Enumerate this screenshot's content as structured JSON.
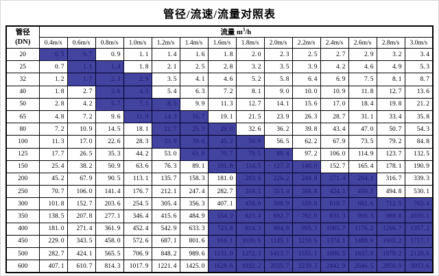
{
  "page": {
    "title": "管径/流速/流量对照表"
  },
  "table": {
    "corner": {
      "line1": "管径",
      "line2": "(DN)"
    },
    "flow_header": {
      "label": "流量",
      "unit_base": "m",
      "unit_sup": "3",
      "unit_rest": "/h"
    },
    "velocity_headers": [
      "0.4m/s",
      "0.6m/s",
      "0.8m/s",
      "1.0m/s",
      "1.2m/s",
      "1.4m/s",
      "1.6m/s",
      "1.8m/s",
      "2.0m/s",
      "2.2m/s",
      "2.4m/s",
      "2.6m/s",
      "2.8m/s",
      "3.0m/s"
    ],
    "rows": [
      {
        "dn": "20",
        "hl": [
          0,
          1
        ],
        "values": [
          "0.5",
          "0.7",
          "0.9",
          "1.1",
          "1.4",
          "1.6",
          "1.8",
          "2.0",
          "2.3",
          "2.5",
          "2.7",
          "2.9",
          "3.2",
          "3.4"
        ]
      },
      {
        "dn": "25",
        "hl": [
          1,
          2
        ],
        "values": [
          "0.7",
          "1.1",
          "1.4",
          "1.8",
          "2.1",
          "2.5",
          "2.8",
          "3.2",
          "3.5",
          "3.9",
          "4.2",
          "4.6",
          "4.9",
          "5.3"
        ]
      },
      {
        "dn": "32",
        "hl": [
          1,
          3
        ],
        "values": [
          "1.2",
          "1.7",
          "2.3",
          "2.9",
          "3.5",
          "4.1",
          "4.6",
          "5.2",
          "5.8",
          "6.4",
          "6.9",
          "7.5",
          "8.1",
          "8.7"
        ]
      },
      {
        "dn": "40",
        "hl": [
          2,
          3
        ],
        "values": [
          "1.8",
          "2.7",
          "3.6",
          "4.5",
          "5.4",
          "6.3",
          "7.2",
          "8.1",
          "9.0",
          "10.0",
          "10.9",
          "11.8",
          "12.7",
          "13.6"
        ]
      },
      {
        "dn": "50",
        "hl": [
          2,
          4
        ],
        "values": [
          "2.8",
          "4.2",
          "5.7",
          "7.1",
          "8.5",
          "9.9",
          "11.3",
          "12.7",
          "14.1",
          "15.6",
          "17.0",
          "18.4",
          "19.8",
          "21.2"
        ]
      },
      {
        "dn": "65",
        "hl": [
          3,
          5
        ],
        "values": [
          "4.8",
          "7.2",
          "9.6",
          "11.9",
          "14.3",
          "16.7",
          "19.1",
          "21.5",
          "23.9",
          "26.3",
          "28.7",
          "31.1",
          "33.4",
          "35.8"
        ]
      },
      {
        "dn": "80",
        "hl": [
          4,
          6
        ],
        "values": [
          "7.2",
          "10.9",
          "14.5",
          "18.1",
          "21.7",
          "25.3",
          "29.0",
          "32.6",
          "36.2",
          "39.8",
          "43.4",
          "47.0",
          "50.7",
          "54.3"
        ]
      },
      {
        "dn": "100",
        "hl": [
          4,
          7
        ],
        "values": [
          "11.3",
          "17.0",
          "22.6",
          "28.3",
          "33.9",
          "39.6",
          "45.2",
          "50.9",
          "56.5",
          "62.2",
          "67.9",
          "73.5",
          "79.2",
          "84.8"
        ]
      },
      {
        "dn": "125",
        "hl": [
          5,
          8
        ],
        "values": [
          "17.7",
          "26.5",
          "35.3",
          "44.2",
          "53.0",
          "61.9",
          "70.7",
          "79.5",
          "88.4",
          "97.2",
          "106.0",
          "114.9",
          "123.7",
          "132.5"
        ]
      },
      {
        "dn": "150",
        "hl": [
          6,
          9
        ],
        "values": [
          "25.4",
          "38.2",
          "50.9",
          "63.6",
          "76.3",
          "89.1",
          "101.8",
          "114.5",
          "127.2",
          "140.0",
          "152.7",
          "165.4",
          "178.1",
          "190.9"
        ]
      },
      {
        "dn": "200",
        "hl": [
          7,
          11
        ],
        "values": [
          "45.2",
          "67.9",
          "90.5",
          "113.1",
          "135.7",
          "158.3",
          "181.0",
          "203.6",
          "226.2",
          "248.8",
          "271.4",
          "294.1",
          "316.7",
          "339.3"
        ]
      },
      {
        "dn": "250",
        "hl": [
          7,
          11
        ],
        "values": [
          "70.7",
          "106.0",
          "141.4",
          "176.7",
          "212.1",
          "247.4",
          "282.7",
          "318.1",
          "353.4",
          "388.8",
          "424.1",
          "459.5",
          "494.8",
          "530.1"
        ]
      },
      {
        "dn": "300",
        "hl": [
          7,
          13
        ],
        "values": [
          "101.8",
          "152.7",
          "203.6",
          "254.5",
          "305.4",
          "356.3",
          "407.1",
          "458.0",
          "508.9",
          "559.8",
          "610.7",
          "661.6",
          "712.5",
          "763.4"
        ]
      },
      {
        "dn": "350",
        "hl": [
          6,
          13
        ],
        "values": [
          "138.5",
          "207.8",
          "277.1",
          "346.4",
          "415.6",
          "484.9",
          "554.2",
          "623.4",
          "692.7",
          "762.0",
          "831.3",
          "900.5",
          "969.8",
          "1039.1"
        ]
      },
      {
        "dn": "400",
        "hl": [
          6,
          13
        ],
        "values": [
          "181.0",
          "271.4",
          "361.9",
          "452.4",
          "542.9",
          "633.3",
          "723.8",
          "814.3",
          "904.8",
          "995.3",
          "1085.7",
          "1176.2",
          "1266.7",
          "1357.2"
        ]
      },
      {
        "dn": "450",
        "hl": [
          6,
          13
        ],
        "values": [
          "229.0",
          "343.5",
          "458.0",
          "572.6",
          "687.1",
          "801.6",
          "916.1",
          "1030.6",
          "1145.1",
          "1259.6",
          "1374.1",
          "1488.6",
          "1603.2",
          "1717.7"
        ]
      },
      {
        "dn": "500",
        "hl": [
          6,
          13
        ],
        "values": [
          "282.7",
          "424.1",
          "565.5",
          "706.9",
          "848.2",
          "989.6",
          "1131.0",
          "1272.3",
          "1413.7",
          "1555.1",
          "1696.5",
          "1837.8",
          "1979.2",
          "2120.6"
        ]
      },
      {
        "dn": "600",
        "hl": [
          6,
          13
        ],
        "values": [
          "407.1",
          "610.7",
          "814.3",
          "1017.9",
          "1221.4",
          "1425.0",
          "1628.6",
          "1832.2",
          "2035.7",
          "2239.3",
          "2442.9",
          "2646.5",
          "2850.0",
          "3053.6"
        ]
      }
    ]
  },
  "colors": {
    "highlight_bg": "#4343a0",
    "highlight_text": "#1b1b70",
    "grid": "#000000"
  }
}
